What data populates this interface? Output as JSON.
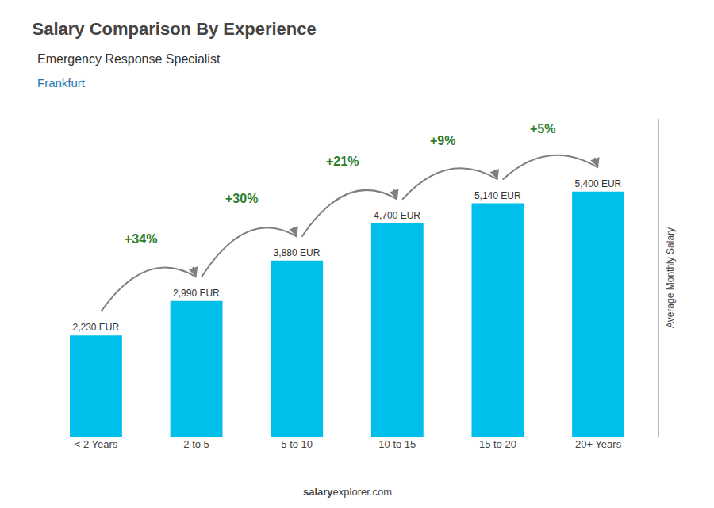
{
  "chart_data": {
    "type": "bar",
    "title": "Salary Comparison By Experience",
    "subtitle": [
      "Emergency Response Specialist",
      "Frankfurt"
    ],
    "ylabel": "Average Monthly Salary",
    "categories": [
      "< 2 Years",
      "2 to 5",
      "5 to 10",
      "10 to 15",
      "15 to 20",
      "20+ Years"
    ],
    "values": [
      2230,
      2990,
      3880,
      4700,
      5140,
      5400
    ],
    "value_labels": [
      "2,230 EUR",
      "2,990 EUR",
      "3,880 EUR",
      "4,700 EUR",
      "5,140 EUR",
      "5,400 EUR"
    ],
    "data_labels": true,
    "color": "#00bfea",
    "ylim": [
      0,
      7000
    ],
    "grid": false,
    "tick_labels": "x",
    "annotations": [
      {
        "text": "+34%",
        "from": "< 2 Years",
        "to": "2 to 5"
      },
      {
        "text": "+30%",
        "from": "2 to 5",
        "to": "5 to 10"
      },
      {
        "text": "+21%",
        "from": "5 to 10",
        "to": "10 to 15"
      },
      {
        "text": "+9%",
        "from": "10 to 15",
        "to": "15 to 20"
      },
      {
        "text": "+5%",
        "from": "15 to 20",
        "to": "20+ Years"
      },
      {
        "text": "salary"
      },
      {
        "text": "explorer.com"
      }
    ]
  }
}
